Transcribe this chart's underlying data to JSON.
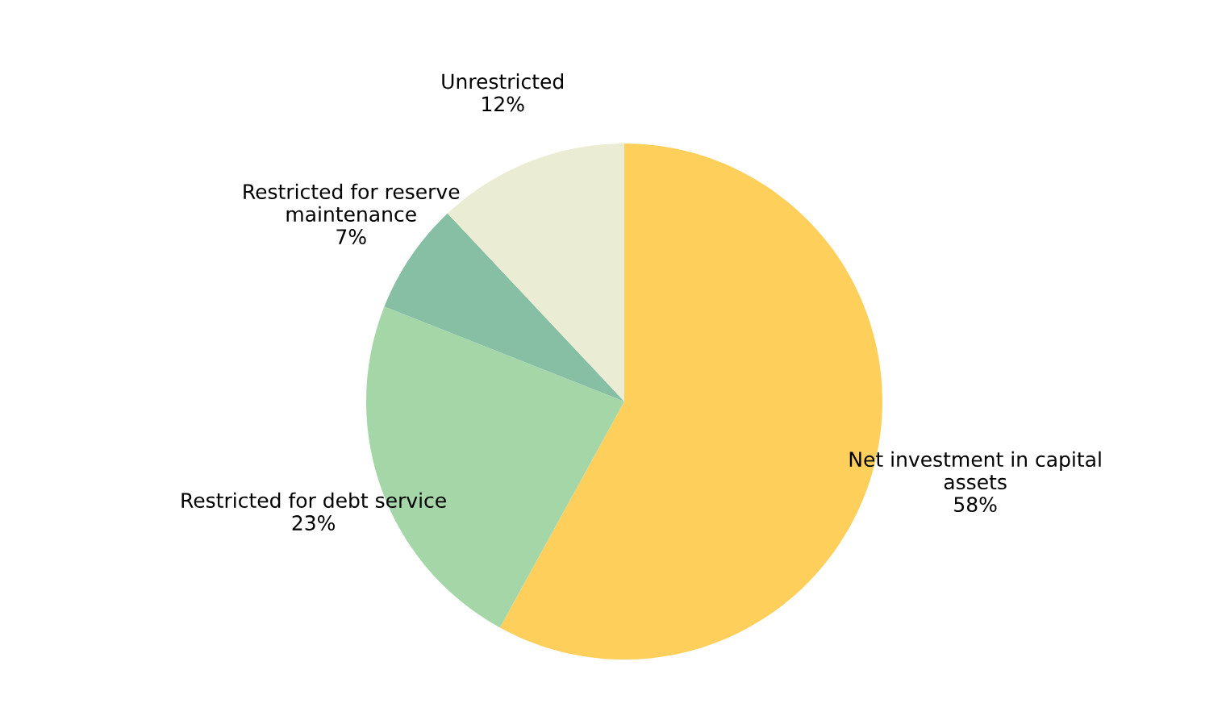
{
  "chart_data": {
    "type": "pie",
    "categories": [
      "Net investment in capital\nassets",
      "Restricted for debt service",
      "Restricted for reserve\nmaintenance",
      "Unrestricted"
    ],
    "values": [
      58,
      23,
      7,
      12
    ],
    "colors": [
      "#ffcf5c",
      "#a5d6a7",
      "#86bfa3",
      "#eaedd3"
    ],
    "value_labels": [
      "58%",
      "23%",
      "7%",
      "12%"
    ]
  }
}
